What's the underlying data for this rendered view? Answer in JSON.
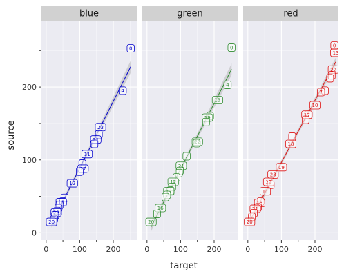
{
  "chart_data": {
    "type": "scatter",
    "facet_variable": "color",
    "xlabel": "target",
    "ylabel": "source",
    "xlim": [
      -14,
      270
    ],
    "ylim": [
      -10,
      290
    ],
    "x_ticks": [
      0,
      100,
      200
    ],
    "y_ticks": [
      0,
      100,
      200
    ],
    "smoother": "linear fit with confidence band",
    "panels": [
      {
        "name": "blue",
        "color": "#0000CC",
        "points": [
          {
            "label": "0",
            "x": 252,
            "y": 253
          },
          {
            "label": "4",
            "x": 228,
            "y": 195
          },
          {
            "label": "23",
            "x": 162,
            "y": 145
          },
          {
            "label": "",
            "x": 157,
            "y": 135
          },
          {
            "label": "21",
            "x": 148,
            "y": 128
          },
          {
            "label": "",
            "x": 144,
            "y": 122
          },
          {
            "label": "11",
            "x": 122,
            "y": 108
          },
          {
            "label": "",
            "x": 108,
            "y": 95
          },
          {
            "label": "17",
            "x": 110,
            "y": 88
          },
          {
            "label": "",
            "x": 100,
            "y": 84
          },
          {
            "label": "12",
            "x": 78,
            "y": 68
          },
          {
            "label": "",
            "x": 55,
            "y": 48
          },
          {
            "label": "",
            "x": 50,
            "y": 43
          },
          {
            "label": "18",
            "x": 45,
            "y": 42
          },
          {
            "label": "",
            "x": 40,
            "y": 38
          },
          {
            "label": "",
            "x": 37,
            "y": 34
          },
          {
            "label": "",
            "x": 33,
            "y": 30
          },
          {
            "label": "22",
            "x": 30,
            "y": 28
          },
          {
            "label": "",
            "x": 27,
            "y": 24
          },
          {
            "label": "",
            "x": 24,
            "y": 19
          },
          {
            "label": "",
            "x": 22,
            "y": 17
          },
          {
            "label": "20",
            "x": 16,
            "y": 15
          }
        ]
      },
      {
        "name": "green",
        "color": "#2E8B2E",
        "points": [
          {
            "label": "0",
            "x": 252,
            "y": 254
          },
          {
            "label": "4",
            "x": 240,
            "y": 203
          },
          {
            "label": "13",
            "x": 210,
            "y": 182
          },
          {
            "label": "",
            "x": 188,
            "y": 160
          },
          {
            "label": "19",
            "x": 180,
            "y": 158
          },
          {
            "label": "",
            "x": 176,
            "y": 152
          },
          {
            "label": "22",
            "x": 150,
            "y": 125
          },
          {
            "label": "",
            "x": 148,
            "y": 123
          },
          {
            "label": "7",
            "x": 118,
            "y": 105
          },
          {
            "label": "21",
            "x": 102,
            "y": 92
          },
          {
            "label": "",
            "x": 98,
            "y": 85
          },
          {
            "label": "",
            "x": 95,
            "y": 82
          },
          {
            "label": "",
            "x": 88,
            "y": 76
          },
          {
            "label": "12",
            "x": 78,
            "y": 70
          },
          {
            "label": "",
            "x": 75,
            "y": 63
          },
          {
            "label": "",
            "x": 70,
            "y": 58
          },
          {
            "label": "17",
            "x": 65,
            "y": 57
          },
          {
            "label": "",
            "x": 60,
            "y": 52
          },
          {
            "label": "",
            "x": 55,
            "y": 49
          },
          {
            "label": "16",
            "x": 40,
            "y": 34
          },
          {
            "label": "",
            "x": 30,
            "y": 26
          },
          {
            "label": "20",
            "x": 12,
            "y": 15
          }
        ]
      },
      {
        "name": "red",
        "color": "#DD1111",
        "points": [
          {
            "label": "0",
            "x": 258,
            "y": 257
          },
          {
            "label": "13",
            "x": 262,
            "y": 247
          },
          {
            "label": "22",
            "x": 255,
            "y": 224
          },
          {
            "label": "",
            "x": 250,
            "y": 216
          },
          {
            "label": "",
            "x": 245,
            "y": 212
          },
          {
            "label": "",
            "x": 230,
            "y": 195
          },
          {
            "label": "7",
            "x": 218,
            "y": 193
          },
          {
            "label": "10",
            "x": 200,
            "y": 175
          },
          {
            "label": "",
            "x": 180,
            "y": 162
          },
          {
            "label": "17",
            "x": 176,
            "y": 162
          },
          {
            "label": "",
            "x": 172,
            "y": 155
          },
          {
            "label": "",
            "x": 132,
            "y": 132
          },
          {
            "label": "18",
            "x": 128,
            "y": 122
          },
          {
            "label": "19",
            "x": 100,
            "y": 90
          },
          {
            "label": "23",
            "x": 75,
            "y": 80
          },
          {
            "label": "12",
            "x": 62,
            "y": 70
          },
          {
            "label": "",
            "x": 68,
            "y": 66
          },
          {
            "label": "11",
            "x": 52,
            "y": 57
          },
          {
            "label": "",
            "x": 38,
            "y": 43
          },
          {
            "label": "15",
            "x": 35,
            "y": 41
          },
          {
            "label": "",
            "x": 30,
            "y": 35
          },
          {
            "label": "21",
            "x": 22,
            "y": 33
          },
          {
            "label": "",
            "x": 18,
            "y": 27
          },
          {
            "label": "",
            "x": 12,
            "y": 22
          },
          {
            "label": "20",
            "x": 5,
            "y": 15
          }
        ]
      }
    ]
  }
}
